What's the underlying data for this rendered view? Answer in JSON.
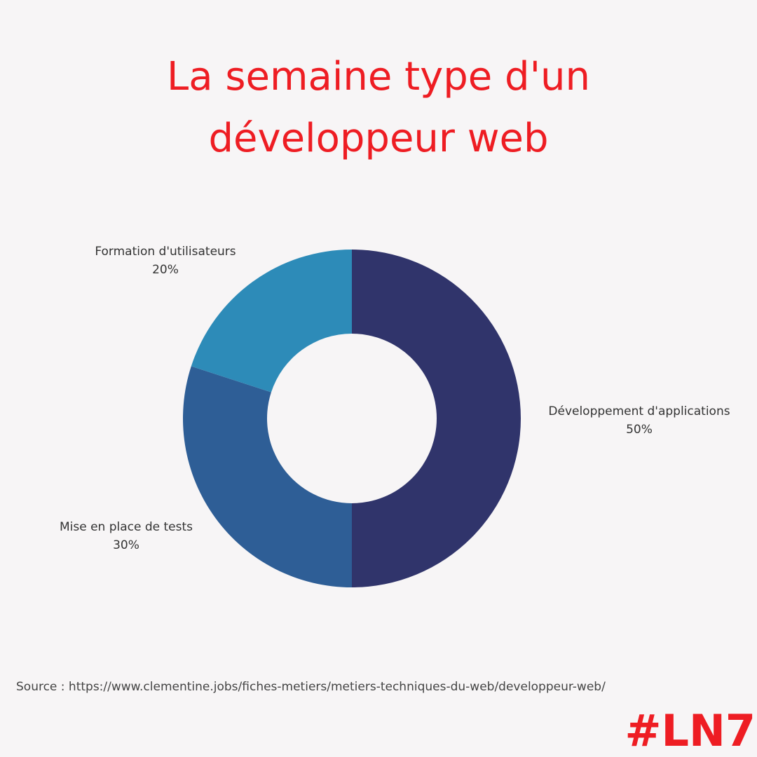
{
  "title_lines": [
    "La semaine type d'un",
    "développeur web"
  ],
  "chart_data": {
    "type": "pie",
    "donut": true,
    "slices": [
      {
        "label": "Développement d'applications",
        "value": 50,
        "value_label": "50%",
        "color": "#30346b"
      },
      {
        "label": "Mise en place de tests",
        "value": 30,
        "value_label": "30%",
        "color": "#2e5e96"
      },
      {
        "label": "Formation d'utilisateurs",
        "value": 20,
        "value_label": "20%",
        "color": "#2d8bb8"
      }
    ]
  },
  "source": "Source : https://www.clementine.jobs/fiches-metiers/metiers-techniques-du-web/developpeur-web/",
  "hashtag": "#LN7",
  "colors": {
    "title": "#ee1d23",
    "background": "#f7f5f6"
  }
}
